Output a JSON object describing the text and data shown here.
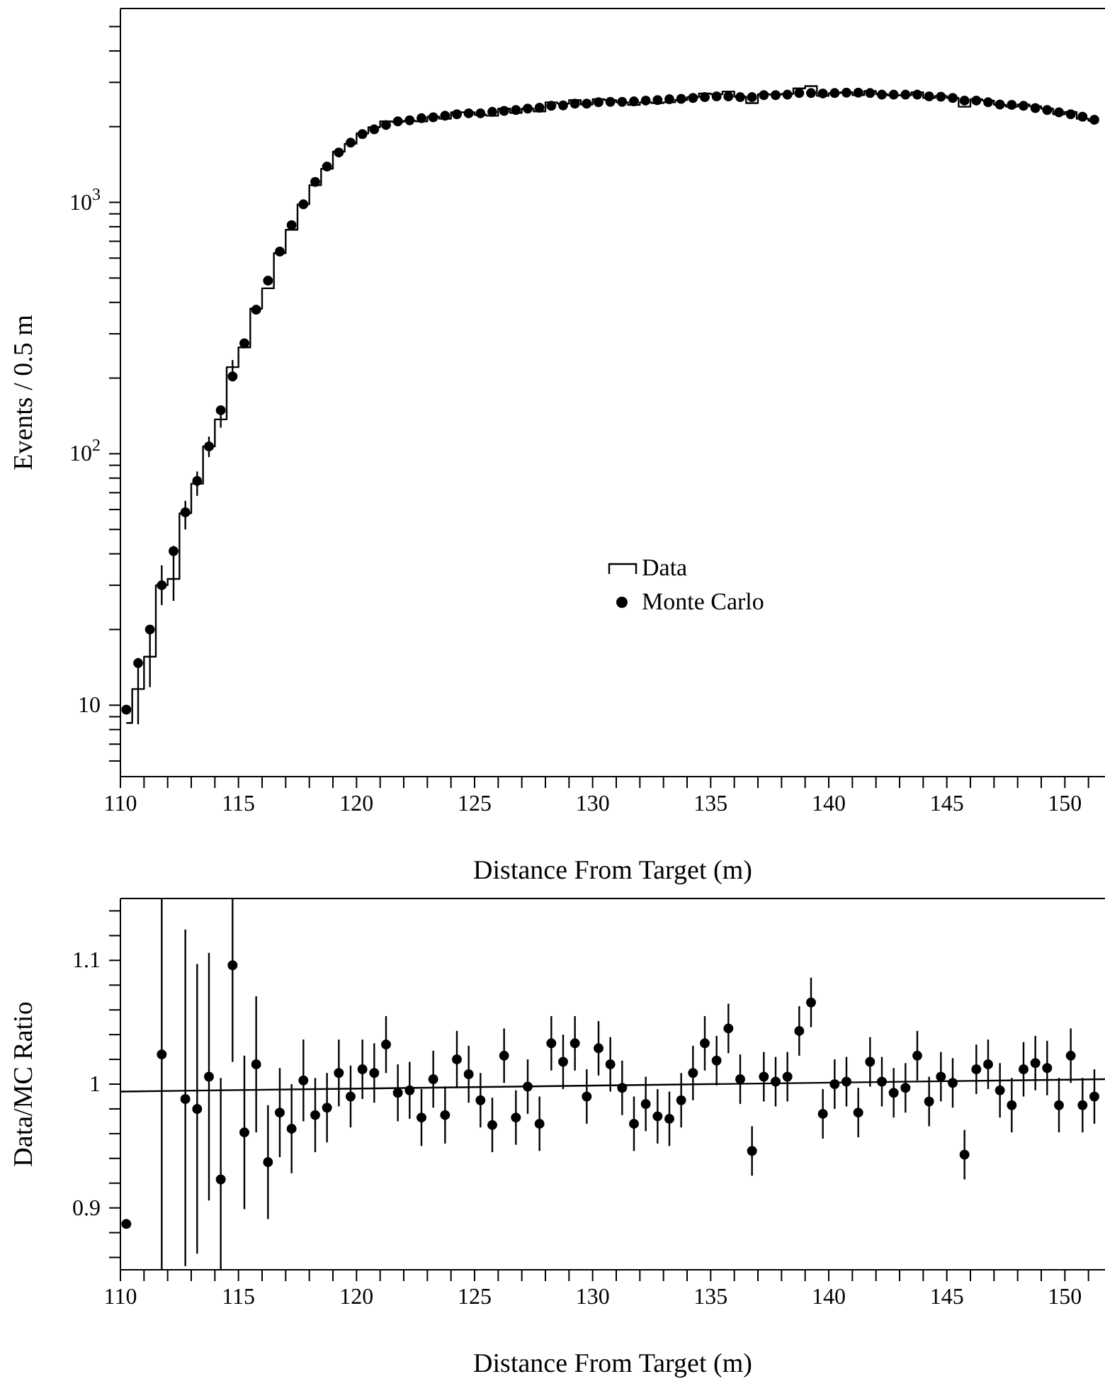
{
  "chart_data": [
    {
      "type": "step",
      "xlabel": "Distance From Target (m)",
      "ylabel": "Events / 0.5 m",
      "log": "y",
      "legend": "center",
      "xlim": [
        110,
        151.7
      ],
      "xticks": [
        110,
        {
          "value": 111,
          "label": null
        },
        {
          "value": 112,
          "label": null
        },
        {
          "value": 113,
          "label": null
        },
        {
          "value": 114,
          "label": null
        },
        115,
        {
          "value": 116,
          "label": null
        },
        {
          "value": 117,
          "label": null
        },
        {
          "value": 118,
          "label": null
        },
        {
          "value": 119,
          "label": null
        },
        120,
        {
          "value": 121,
          "label": null
        },
        {
          "value": 122,
          "label": null
        },
        {
          "value": 123,
          "label": null
        },
        {
          "value": 124,
          "label": null
        },
        125,
        {
          "value": 126,
          "label": null
        },
        {
          "value": 127,
          "label": null
        },
        {
          "value": 128,
          "label": null
        },
        {
          "value": 129,
          "label": null
        },
        130,
        {
          "value": 131,
          "label": null
        },
        {
          "value": 132,
          "label": null
        },
        {
          "value": 133,
          "label": null
        },
        {
          "value": 134,
          "label": null
        },
        135,
        {
          "value": 136,
          "label": null
        },
        {
          "value": 137,
          "label": null
        },
        {
          "value": 138,
          "label": null
        },
        {
          "value": 139,
          "label": null
        },
        140,
        {
          "value": 141,
          "label": null
        },
        {
          "value": 142,
          "label": null
        },
        {
          "value": 143,
          "label": null
        },
        {
          "value": 144,
          "label": null
        },
        145,
        {
          "value": 146,
          "label": null
        },
        {
          "value": 147,
          "label": null
        },
        {
          "value": 148,
          "label": null
        },
        {
          "value": 149,
          "label": null
        },
        150,
        {
          "value": 151,
          "label": null
        }
      ],
      "ylim": [
        5.2,
        5900
      ],
      "yticks": [
        {
          "value": 6,
          "label": null
        },
        {
          "value": 7,
          "label": null
        },
        {
          "value": 8,
          "label": null
        },
        {
          "value": 9,
          "label": null
        },
        10,
        {
          "value": 20,
          "label": null
        },
        {
          "value": 30,
          "label": null
        },
        {
          "value": 40,
          "label": null
        },
        {
          "value": 50,
          "label": null
        },
        {
          "value": 60,
          "label": null
        },
        {
          "value": 70,
          "label": null
        },
        {
          "value": 80,
          "label": null
        },
        {
          "value": 90,
          "label": null
        },
        {
          "value": 100,
          "label": "10$^{2}$"
        },
        {
          "value": 200,
          "label": null
        },
        {
          "value": 300,
          "label": null
        },
        {
          "value": 400,
          "label": null
        },
        {
          "value": 500,
          "label": null
        },
        {
          "value": 600,
          "label": null
        },
        {
          "value": 700,
          "label": null
        },
        {
          "value": 800,
          "label": null
        },
        {
          "value": 900,
          "label": null
        },
        {
          "value": 1000,
          "label": "10$^{3}$"
        },
        {
          "value": 2000,
          "label": null
        },
        {
          "value": 3000,
          "label": null
        },
        {
          "value": 4000,
          "label": null
        },
        {
          "value": 5000,
          "label": null
        }
      ],
      "series": [
        {
          "name": "Data",
          "color": "#000000",
          "x": [
            110.25,
            110.75,
            111.25,
            111.75,
            112.25,
            112.75,
            113.25,
            113.75,
            114.25,
            114.75,
            115.25,
            115.75,
            116.25,
            116.75,
            117.25,
            117.75,
            118.25,
            118.75,
            119.25,
            119.75,
            120.25,
            120.75,
            121.25,
            121.75,
            122.25,
            122.75,
            123.25,
            123.75,
            124.25,
            124.75,
            125.25,
            125.75,
            126.25,
            126.75,
            127.25,
            127.75,
            128.25,
            128.75,
            129.25,
            129.75,
            130.25,
            130.75,
            131.25,
            131.75,
            132.25,
            132.75,
            133.25,
            133.75,
            134.25,
            134.75,
            135.25,
            135.75,
            136.25,
            136.75,
            137.25,
            137.75,
            138.25,
            138.75,
            139.25,
            139.75,
            140.25,
            140.75,
            141.25,
            141.75,
            142.25,
            142.75,
            143.25,
            143.75,
            144.25,
            144.75,
            145.25,
            145.75,
            146.25,
            146.75,
            147.25,
            147.75,
            148.25,
            148.75,
            149.25,
            149.75,
            150.25,
            150.75,
            151.25
          ],
          "values": [
            8.5,
            11.6,
            15.6,
            30,
            31.8,
            58,
            76,
            107,
            137,
            221,
            265,
            378,
            455,
            628,
            778,
            982,
            1170,
            1360,
            1590,
            1710,
            1880,
            1990,
            2100,
            2090,
            2110,
            2100,
            2190,
            2150,
            2280,
            2280,
            2230,
            2210,
            2360,
            2270,
            2360,
            2300,
            2500,
            2470,
            2550,
            2450,
            2570,
            2550,
            2500,
            2440,
            2500,
            2480,
            2500,
            2550,
            2620,
            2710,
            2690,
            2760,
            2630,
            2480,
            2690,
            2680,
            2700,
            2840,
            2900,
            2650,
            2720,
            2740,
            2670,
            2770,
            2690,
            2660,
            2670,
            2740,
            2600,
            2650,
            2600,
            2400,
            2570,
            2540,
            2440,
            2400,
            2450,
            2410,
            2360,
            2240,
            2290,
            2150,
            2110
          ]
        },
        {
          "name": "Monte Carlo",
          "type": "scatter",
          "marker": "circle",
          "color": "#000000",
          "x": [
            110.25,
            110.75,
            111.25,
            111.75,
            112.25,
            112.75,
            113.25,
            113.75,
            114.25,
            114.75,
            115.25,
            115.75,
            116.25,
            116.75,
            117.25,
            117.75,
            118.25,
            118.75,
            119.25,
            119.75,
            120.25,
            120.75,
            121.25,
            121.75,
            122.25,
            122.75,
            123.25,
            123.75,
            124.25,
            124.75,
            125.25,
            125.75,
            126.25,
            126.75,
            127.25,
            127.75,
            128.25,
            128.75,
            129.25,
            129.75,
            130.25,
            130.75,
            131.25,
            131.75,
            132.25,
            132.75,
            133.25,
            133.75,
            134.25,
            134.75,
            135.25,
            135.75,
            136.25,
            136.75,
            137.25,
            137.75,
            138.25,
            138.75,
            139.25,
            139.75,
            140.25,
            140.75,
            141.25,
            141.75,
            142.25,
            142.75,
            143.25,
            143.75,
            144.25,
            144.75,
            145.25,
            145.75,
            146.25,
            146.75,
            147.25,
            147.75,
            148.25,
            148.75,
            149.25,
            149.75,
            150.25,
            150.75,
            151.25
          ],
          "values": [
            9.6,
            14.7,
            20,
            30,
            41,
            58.5,
            78,
            107,
            149,
            203,
            275,
            374,
            488,
            637,
            811,
            982,
            1205,
            1387,
            1579,
            1727,
            1868,
            1950,
            2030,
            2100,
            2120,
            2160,
            2180,
            2210,
            2240,
            2260,
            2260,
            2290,
            2310,
            2330,
            2360,
            2380,
            2420,
            2430,
            2470,
            2470,
            2500,
            2510,
            2510,
            2520,
            2540,
            2550,
            2570,
            2580,
            2600,
            2620,
            2640,
            2640,
            2620,
            2620,
            2670,
            2670,
            2680,
            2720,
            2720,
            2710,
            2720,
            2730,
            2730,
            2720,
            2680,
            2680,
            2680,
            2680,
            2640,
            2630,
            2600,
            2540,
            2540,
            2500,
            2450,
            2440,
            2420,
            2370,
            2330,
            2280,
            2240,
            2190,
            2130
          ],
          "errors": [
            null,
            [
              8.4,
              15.4
            ],
            [
              11.8,
              20.2
            ],
            [
              25,
              36
            ],
            [
              26,
              43
            ],
            [
              50,
              65
            ],
            [
              68,
              85
            ],
            [
              97,
              117
            ],
            [
              127,
              154
            ],
            [
              194,
              236
            ],
            null,
            null,
            null,
            null,
            null,
            null,
            null,
            null,
            null,
            null,
            null,
            null,
            null,
            null,
            null,
            null,
            null,
            null,
            null,
            null,
            null,
            null,
            null,
            null,
            null,
            null,
            null,
            null,
            null,
            null,
            null,
            null,
            null,
            null,
            null,
            null,
            null,
            null,
            null,
            null,
            null,
            null,
            null,
            null,
            null,
            null,
            null,
            null,
            null,
            null,
            null,
            null,
            null,
            null,
            null,
            null,
            null,
            null,
            null,
            null,
            null,
            null,
            null,
            null,
            null,
            null,
            null,
            null,
            null,
            null,
            null,
            null,
            null
          ]
        }
      ]
    },
    {
      "type": "scatter",
      "xlabel": "Distance From Target (m)",
      "ylabel": "Data/MC Ratio",
      "xlim": [
        110,
        151.7
      ],
      "xticks": [
        110,
        {
          "value": 111,
          "label": null
        },
        {
          "value": 112,
          "label": null
        },
        {
          "value": 113,
          "label": null
        },
        {
          "value": 114,
          "label": null
        },
        115,
        {
          "value": 116,
          "label": null
        },
        {
          "value": 117,
          "label": null
        },
        {
          "value": 118,
          "label": null
        },
        {
          "value": 119,
          "label": null
        },
        120,
        {
          "value": 121,
          "label": null
        },
        {
          "value": 122,
          "label": null
        },
        {
          "value": 123,
          "label": null
        },
        {
          "value": 124,
          "label": null
        },
        125,
        {
          "value": 126,
          "label": null
        },
        {
          "value": 127,
          "label": null
        },
        {
          "value": 128,
          "label": null
        },
        {
          "value": 129,
          "label": null
        },
        130,
        {
          "value": 131,
          "label": null
        },
        {
          "value": 132,
          "label": null
        },
        {
          "value": 133,
          "label": null
        },
        {
          "value": 134,
          "label": null
        },
        135,
        {
          "value": 136,
          "label": null
        },
        {
          "value": 137,
          "label": null
        },
        {
          "value": 138,
          "label": null
        },
        {
          "value": 139,
          "label": null
        },
        140,
        {
          "value": 141,
          "label": null
        },
        {
          "value": 142,
          "label": null
        },
        {
          "value": 143,
          "label": null
        },
        {
          "value": 144,
          "label": null
        },
        145,
        {
          "value": 146,
          "label": null
        },
        {
          "value": 147,
          "label": null
        },
        {
          "value": 148,
          "label": null
        },
        {
          "value": 149,
          "label": null
        },
        150,
        {
          "value": 151,
          "label": null
        }
      ],
      "ylim": [
        0.85,
        1.15
      ],
      "yticks": [
        {
          "value": 0.86,
          "label": null
        },
        {
          "value": 0.88,
          "label": null
        },
        0.9,
        {
          "value": 0.92,
          "label": null
        },
        {
          "value": 0.94,
          "label": null
        },
        {
          "value": 0.96,
          "label": null
        },
        {
          "value": 0.98,
          "label": null
        },
        1,
        {
          "value": 1.02,
          "label": null
        },
        {
          "value": 1.04,
          "label": null
        },
        {
          "value": 1.06,
          "label": null
        },
        {
          "value": 1.08,
          "label": null
        },
        1.1,
        {
          "value": 1.12,
          "label": null
        },
        {
          "value": 1.14,
          "label": null
        }
      ],
      "series": [
        {
          "marker": "circle",
          "color": "#000000",
          "x": [
            110.25,
            110.75,
            111.25,
            111.75,
            112.25,
            112.75,
            113.25,
            113.75,
            114.25,
            114.75,
            115.25,
            115.75,
            116.25,
            116.75,
            117.25,
            117.75,
            118.25,
            118.75,
            119.25,
            119.75,
            120.25,
            120.75,
            121.25,
            121.75,
            122.25,
            122.75,
            123.25,
            123.75,
            124.25,
            124.75,
            125.25,
            125.75,
            126.25,
            126.75,
            127.25,
            127.75,
            128.25,
            128.75,
            129.25,
            129.75,
            130.25,
            130.75,
            131.25,
            131.75,
            132.25,
            132.75,
            133.25,
            133.75,
            134.25,
            134.75,
            135.25,
            135.75,
            136.25,
            136.75,
            137.25,
            137.75,
            138.25,
            138.75,
            139.25,
            139.75,
            140.25,
            140.75,
            141.25,
            141.75,
            142.25,
            142.75,
            143.25,
            143.75,
            144.25,
            144.75,
            145.25,
            145.75,
            146.25,
            146.75,
            147.25,
            147.75,
            148.25,
            148.75,
            149.25,
            149.75,
            150.25,
            150.75,
            151.25
          ],
          "values": [
            0.887,
            null,
            null,
            1.024,
            null,
            0.988,
            0.98,
            1.006,
            0.923,
            1.096,
            0.961,
            1.016,
            0.937,
            0.977,
            0.964,
            1.003,
            0.975,
            0.981,
            1.009,
            0.99,
            1.012,
            1.009,
            1.032,
            0.993,
            0.995,
            0.973,
            1.004,
            0.975,
            1.02,
            1.008,
            0.987,
            0.967,
            1.023,
            0.973,
            0.998,
            0.968,
            1.033,
            1.018,
            1.033,
            0.99,
            1.029,
            1.016,
            0.997,
            0.968,
            0.984,
            0.974,
            0.972,
            0.987,
            1.009,
            1.033,
            1.019,
            1.045,
            1.004,
            0.946,
            1.006,
            1.002,
            1.006,
            1.043,
            1.066,
            0.976,
            1.0,
            1.002,
            0.977,
            1.018,
            1.002,
            0.993,
            0.997,
            1.023,
            0.986,
            1.006,
            1.001,
            0.943,
            1.012,
            1.016,
            0.995,
            0.983,
            1.012,
            1.017,
            1.013,
            0.983,
            1.023,
            0.983,
            0.99
          ],
          "errors": [
            null,
            null,
            null,
            [
              0.85,
              1.15
            ],
            null,
            [
              0.853,
              1.125
            ],
            0.117,
            0.1,
            [
              0.85,
              1.005
            ],
            [
              1.018,
              1.15
            ],
            0.062,
            0.055,
            0.046,
            0.036,
            0.036,
            0.033,
            0.03,
            0.028,
            0.027,
            0.025,
            0.024,
            0.024,
            0.023,
            0.023,
            0.023,
            0.023,
            0.023,
            0.023,
            0.023,
            0.023,
            0.022,
            0.022,
            0.022,
            0.022,
            0.022,
            0.022,
            0.022,
            0.022,
            0.022,
            0.022,
            0.022,
            0.022,
            0.022,
            0.022,
            0.022,
            0.022,
            0.022,
            0.022,
            0.022,
            0.022,
            0.02,
            0.02,
            0.02,
            0.02,
            0.02,
            0.02,
            0.02,
            0.02,
            0.02,
            0.02,
            0.02,
            0.02,
            0.02,
            0.02,
            0.02,
            0.02,
            0.02,
            0.02,
            0.02,
            0.02,
            0.02,
            0.02,
            0.02,
            0.02,
            0.022,
            0.022,
            0.022,
            0.022,
            0.022,
            0.022,
            0.022,
            0.022,
            0.022
          ]
        },
        {
          "type": "line",
          "color": "#000000",
          "x": [
            110,
            151.7
          ],
          "values": [
            0.994,
            1.004
          ]
        }
      ]
    }
  ]
}
